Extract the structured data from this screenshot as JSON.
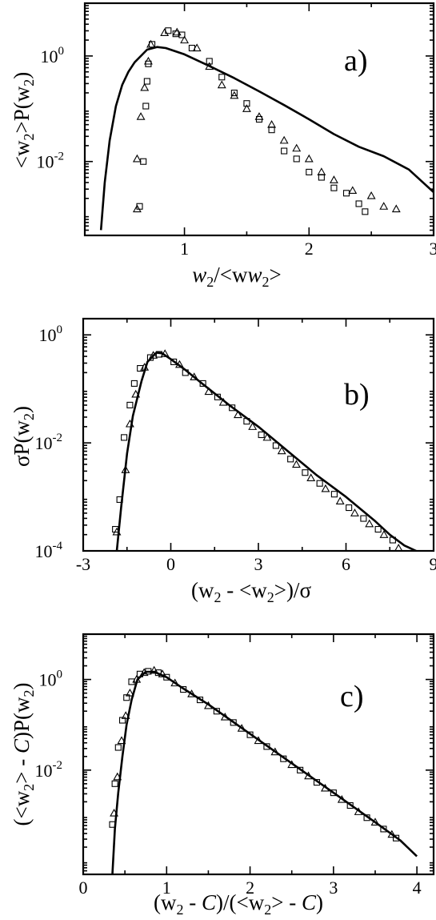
{
  "chart_data": [
    {
      "type": "scatter",
      "panel_label": "a)",
      "xlabel": {
        "main": "w",
        "sub": "2",
        "tail": "/<w",
        "sub2": "2",
        "end": ">"
      },
      "ylabel": {
        "pre": "<w",
        "sub": "2",
        "mid": ">P(w",
        "sub2": "2",
        "end": ")"
      },
      "xlim": [
        0.2,
        3.0
      ],
      "ylim_log10": [
        -3.4,
        1.0
      ],
      "log_y": true,
      "x_ticks": [
        {
          "v": 1,
          "label": "1"
        },
        {
          "v": 2,
          "label": "2"
        },
        {
          "v": 3,
          "label": "3"
        }
      ],
      "y_ticks": [
        {
          "e": 0,
          "label": "10",
          "exp": "0"
        },
        {
          "e": -2,
          "label": "10",
          "exp": "-2"
        }
      ],
      "series": [
        {
          "kind": "line",
          "points": [
            [
              0.33,
              -3.3
            ],
            [
              0.36,
              -2.4
            ],
            [
              0.4,
              -1.6
            ],
            [
              0.45,
              -0.95
            ],
            [
              0.5,
              -0.55
            ],
            [
              0.55,
              -0.3
            ],
            [
              0.6,
              -0.12
            ],
            [
              0.7,
              0.12
            ],
            [
              0.78,
              0.17
            ],
            [
              0.85,
              0.15
            ],
            [
              1.0,
              0.03
            ],
            [
              1.2,
              -0.19
            ],
            [
              1.4,
              -0.42
            ],
            [
              1.6,
              -0.67
            ],
            [
              1.8,
              -0.93
            ],
            [
              2.0,
              -1.2
            ],
            [
              2.2,
              -1.48
            ],
            [
              2.4,
              -1.72
            ],
            [
              2.6,
              -1.9
            ],
            [
              2.8,
              -2.15
            ],
            [
              3.0,
              -2.58
            ]
          ]
        },
        {
          "kind": "squares",
          "points": [
            [
              0.64,
              -2.85
            ],
            [
              0.67,
              -2.0
            ],
            [
              0.69,
              -0.95
            ],
            [
              0.7,
              -0.48
            ],
            [
              0.71,
              -0.15
            ],
            [
              0.74,
              0.22
            ],
            [
              0.87,
              0.48
            ],
            [
              0.93,
              0.42
            ],
            [
              0.98,
              0.4
            ],
            [
              1.06,
              0.15
            ],
            [
              1.2,
              -0.1
            ],
            [
              1.3,
              -0.4
            ],
            [
              1.4,
              -0.7
            ],
            [
              1.5,
              -0.9
            ],
            [
              1.6,
              -1.2
            ],
            [
              1.7,
              -1.4
            ],
            [
              1.8,
              -1.8
            ],
            [
              1.9,
              -1.95
            ],
            [
              2.0,
              -2.2
            ],
            [
              2.1,
              -2.3
            ],
            [
              2.2,
              -2.5
            ],
            [
              2.3,
              -2.6
            ],
            [
              2.4,
              -2.8
            ],
            [
              2.45,
              -2.95
            ]
          ]
        },
        {
          "kind": "triangles",
          "points": [
            [
              0.62,
              -2.9
            ],
            [
              0.62,
              -1.95
            ],
            [
              0.65,
              -1.15
            ],
            [
              0.68,
              -0.6
            ],
            [
              0.71,
              -0.1
            ],
            [
              0.73,
              0.22
            ],
            [
              0.84,
              0.44
            ],
            [
              0.94,
              0.45
            ],
            [
              1.0,
              0.3
            ],
            [
              1.1,
              0.15
            ],
            [
              1.2,
              -0.2
            ],
            [
              1.3,
              -0.55
            ],
            [
              1.4,
              -0.75
            ],
            [
              1.5,
              -1.0
            ],
            [
              1.6,
              -1.15
            ],
            [
              1.7,
              -1.3
            ],
            [
              1.8,
              -1.6
            ],
            [
              1.9,
              -1.75
            ],
            [
              2.0,
              -1.95
            ],
            [
              2.1,
              -2.2
            ],
            [
              2.2,
              -2.35
            ],
            [
              2.35,
              -2.55
            ],
            [
              2.5,
              -2.65
            ],
            [
              2.6,
              -2.85
            ],
            [
              2.7,
              -2.9
            ]
          ]
        }
      ]
    },
    {
      "type": "scatter",
      "panel_label": "b)",
      "xlabel": {
        "pre": "(w",
        "sub": "2",
        "mid": " - <w",
        "sub2": "2",
        "end": ">)/σ"
      },
      "ylabel": {
        "pre": "σP(w",
        "sub": "2",
        "end": ")"
      },
      "xlim": [
        -3,
        9
      ],
      "ylim_log10": [
        -4,
        0.3
      ],
      "log_y": true,
      "x_ticks": [
        {
          "v": -3,
          "label": "-3"
        },
        {
          "v": 0,
          "label": "0"
        },
        {
          "v": 3,
          "label": "3"
        },
        {
          "v": 6,
          "label": "6"
        },
        {
          "v": 9,
          "label": "9"
        }
      ],
      "y_ticks": [
        {
          "e": 0,
          "label": "10",
          "exp": "0"
        },
        {
          "e": -2,
          "label": "10",
          "exp": "-2"
        },
        {
          "e": -4,
          "label": "10",
          "exp": "-4"
        }
      ],
      "series": [
        {
          "kind": "line",
          "points": [
            [
              -1.85,
              -4.0
            ],
            [
              -1.7,
              -3.2
            ],
            [
              -1.5,
              -2.2
            ],
            [
              -1.3,
              -1.5
            ],
            [
              -1.0,
              -0.85
            ],
            [
              -0.8,
              -0.5
            ],
            [
              -0.5,
              -0.33
            ],
            [
              -0.3,
              -0.34
            ],
            [
              0,
              -0.45
            ],
            [
              0.5,
              -0.65
            ],
            [
              1,
              -0.87
            ],
            [
              2,
              -1.3
            ],
            [
              3,
              -1.7
            ],
            [
              4,
              -2.15
            ],
            [
              5,
              -2.6
            ],
            [
              6,
              -3.0
            ],
            [
              7,
              -3.45
            ],
            [
              7.5,
              -3.7
            ],
            [
              8,
              -3.9
            ],
            [
              8.4,
              -4.0
            ]
          ]
        },
        {
          "kind": "squares",
          "points": [
            [
              -1.9,
              -3.6
            ],
            [
              -1.75,
              -3.05
            ],
            [
              -1.6,
              -1.9
            ],
            [
              -1.4,
              -1.3
            ],
            [
              -1.25,
              -0.9
            ],
            [
              -1.05,
              -0.62
            ],
            [
              -0.7,
              -0.42
            ],
            [
              -0.4,
              -0.36
            ],
            [
              0.1,
              -0.5
            ],
            [
              0.5,
              -0.7
            ],
            [
              1.1,
              -0.9
            ],
            [
              1.6,
              -1.15
            ],
            [
              2.1,
              -1.35
            ],
            [
              2.6,
              -1.6
            ],
            [
              3.1,
              -1.85
            ],
            [
              3.6,
              -2.05
            ],
            [
              4.1,
              -2.3
            ],
            [
              4.6,
              -2.55
            ],
            [
              5.1,
              -2.75
            ],
            [
              5.6,
              -2.95
            ],
            [
              6.1,
              -3.2
            ],
            [
              6.6,
              -3.4
            ],
            [
              7.1,
              -3.6
            ],
            [
              7.6,
              -3.8
            ]
          ]
        },
        {
          "kind": "triangles",
          "points": [
            [
              -1.85,
              -3.65
            ],
            [
              -1.55,
              -2.5
            ],
            [
              -1.4,
              -1.65
            ],
            [
              -1.2,
              -1.1
            ],
            [
              -0.9,
              -0.6
            ],
            [
              -0.6,
              -0.38
            ],
            [
              -0.2,
              -0.35
            ],
            [
              0.3,
              -0.55
            ],
            [
              0.8,
              -0.78
            ],
            [
              1.3,
              -1.05
            ],
            [
              1.8,
              -1.25
            ],
            [
              2.3,
              -1.48
            ],
            [
              2.8,
              -1.7
            ],
            [
              3.3,
              -1.9
            ],
            [
              3.8,
              -2.15
            ],
            [
              4.3,
              -2.4
            ],
            [
              4.8,
              -2.65
            ],
            [
              5.3,
              -2.85
            ],
            [
              5.8,
              -3.08
            ],
            [
              6.3,
              -3.3
            ],
            [
              6.8,
              -3.5
            ],
            [
              7.3,
              -3.7
            ],
            [
              7.8,
              -3.95
            ]
          ]
        }
      ]
    },
    {
      "type": "scatter",
      "panel_label": "c)",
      "xlabel": {
        "pre": "(w",
        "sub": "2",
        "mid": " - ",
        "c1": "C",
        "mid2": ")/(<w",
        "sub2": "2",
        "mid3": "> - ",
        "c2": "C",
        "end": ")"
      },
      "ylabel": {
        "pre": "(<w",
        "sub": "2",
        "mid": "> - ",
        "c": "C",
        "mid2": ")P(w",
        "sub2": "2",
        "end": ")"
      },
      "xlim": [
        0,
        4.2
      ],
      "ylim_log10": [
        -4.3,
        1.0
      ],
      "log_y": true,
      "x_ticks": [
        {
          "v": 0,
          "label": "0"
        },
        {
          "v": 1,
          "label": "1"
        },
        {
          "v": 2,
          "label": "2"
        },
        {
          "v": 3,
          "label": "3"
        },
        {
          "v": 4,
          "label": "4"
        }
      ],
      "y_ticks": [
        {
          "e": 0,
          "label": "10",
          "exp": "0"
        },
        {
          "e": -2,
          "label": "10",
          "exp": "-2"
        }
      ],
      "series": [
        {
          "kind": "line",
          "points": [
            [
              0.35,
              -4.3
            ],
            [
              0.38,
              -3.3
            ],
            [
              0.42,
              -2.5
            ],
            [
              0.47,
              -1.7
            ],
            [
              0.52,
              -1.0
            ],
            [
              0.58,
              -0.45
            ],
            [
              0.65,
              0.0
            ],
            [
              0.75,
              0.17
            ],
            [
              0.85,
              0.17
            ],
            [
              1.0,
              0.05
            ],
            [
              1.2,
              -0.2
            ],
            [
              1.5,
              -0.55
            ],
            [
              2.0,
              -1.2
            ],
            [
              2.5,
              -1.85
            ],
            [
              3.0,
              -2.5
            ],
            [
              3.5,
              -3.15
            ],
            [
              3.8,
              -3.55
            ],
            [
              4.0,
              -3.9
            ]
          ]
        },
        {
          "kind": "squares",
          "points": [
            [
              0.35,
              -3.2
            ],
            [
              0.38,
              -2.3
            ],
            [
              0.42,
              -1.5
            ],
            [
              0.47,
              -0.9
            ],
            [
              0.52,
              -0.4
            ],
            [
              0.58,
              -0.05
            ],
            [
              0.68,
              0.12
            ],
            [
              0.78,
              0.18
            ],
            [
              0.9,
              0.15
            ],
            [
              1.0,
              0.05
            ],
            [
              1.2,
              -0.22
            ],
            [
              1.4,
              -0.45
            ],
            [
              1.6,
              -0.7
            ],
            [
              1.8,
              -0.95
            ],
            [
              2.0,
              -1.22
            ],
            [
              2.2,
              -1.48
            ],
            [
              2.4,
              -1.75
            ],
            [
              2.6,
              -2.0
            ],
            [
              2.8,
              -2.27
            ],
            [
              3.0,
              -2.5
            ],
            [
              3.2,
              -2.78
            ],
            [
              3.4,
              -3.05
            ],
            [
              3.6,
              -3.3
            ],
            [
              3.75,
              -3.5
            ]
          ]
        },
        {
          "kind": "triangles",
          "points": [
            [
              0.37,
              -2.95
            ],
            [
              0.41,
              -2.15
            ],
            [
              0.46,
              -1.35
            ],
            [
              0.51,
              -0.8
            ],
            [
              0.56,
              -0.3
            ],
            [
              0.64,
              0.0
            ],
            [
              0.73,
              0.15
            ],
            [
              0.85,
              0.2
            ],
            [
              0.95,
              0.12
            ],
            [
              1.1,
              -0.08
            ],
            [
              1.3,
              -0.32
            ],
            [
              1.5,
              -0.58
            ],
            [
              1.7,
              -0.83
            ],
            [
              1.9,
              -1.08
            ],
            [
              2.1,
              -1.35
            ],
            [
              2.3,
              -1.6
            ],
            [
              2.5,
              -1.88
            ],
            [
              2.7,
              -2.13
            ],
            [
              2.9,
              -2.4
            ],
            [
              3.1,
              -2.65
            ],
            [
              3.3,
              -2.92
            ],
            [
              3.5,
              -3.15
            ],
            [
              3.7,
              -3.42
            ]
          ]
        }
      ]
    }
  ]
}
